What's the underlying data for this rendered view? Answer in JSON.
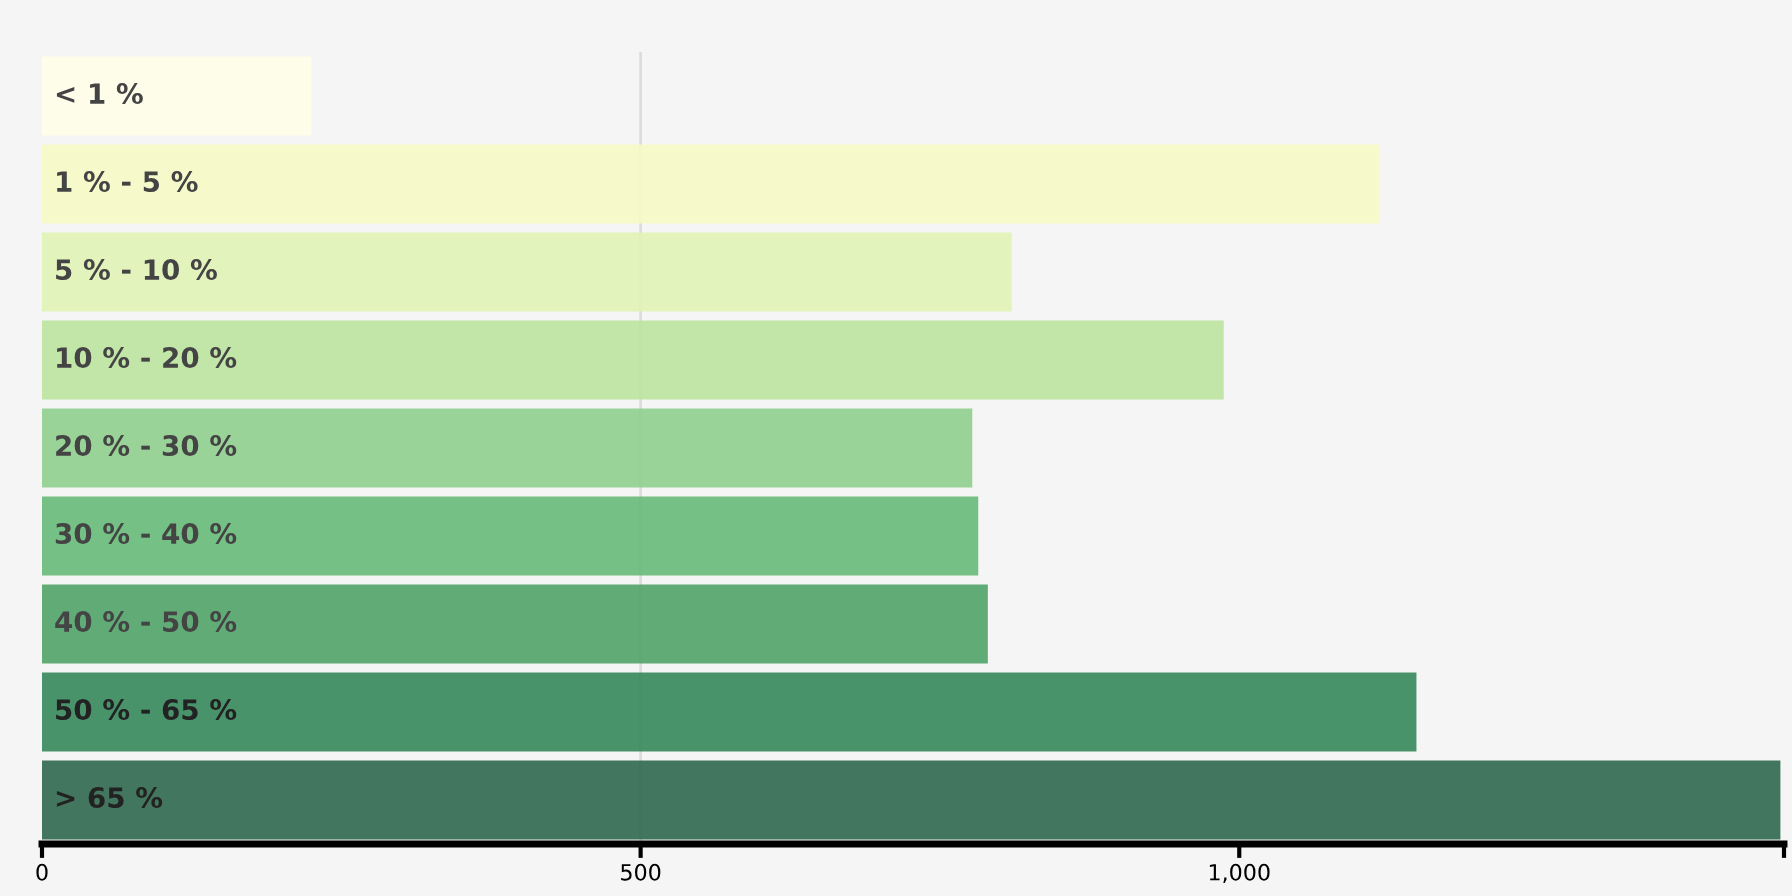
{
  "chart_data": {
    "type": "bar",
    "orientation": "horizontal",
    "categories": [
      "< 1 %",
      "1 % - 5 %",
      "5 % - 10 %",
      "10 % - 20 %",
      "20 % - 30 %",
      "30 % - 40 %",
      "40 % - 50 %",
      "50 % - 65 %",
      "> 65 %"
    ],
    "values": [
      225,
      1117,
      810,
      987,
      777,
      782,
      790,
      1148,
      1452
    ],
    "colors": [
      "#fdfde8",
      "#f5fac5",
      "#e1f2b6",
      "#bde3a1",
      "#91cf8f",
      "#68bb7b",
      "#54a46b",
      "#3a8a5e",
      "#336a50"
    ],
    "xlim": [
      0,
      1455
    ],
    "xticks": [
      0,
      {
        "value": 500,
        "label": "500"
      },
      {
        "value": 1000,
        "label": "1,000"
      },
      {
        "value": 1455,
        "label": null
      }
    ],
    "ref_lines": [
      {
        "axis": "x",
        "value": 500,
        "label": null,
        "color": "#dcdcdc"
      }
    ],
    "grid": false,
    "legend": false
  }
}
